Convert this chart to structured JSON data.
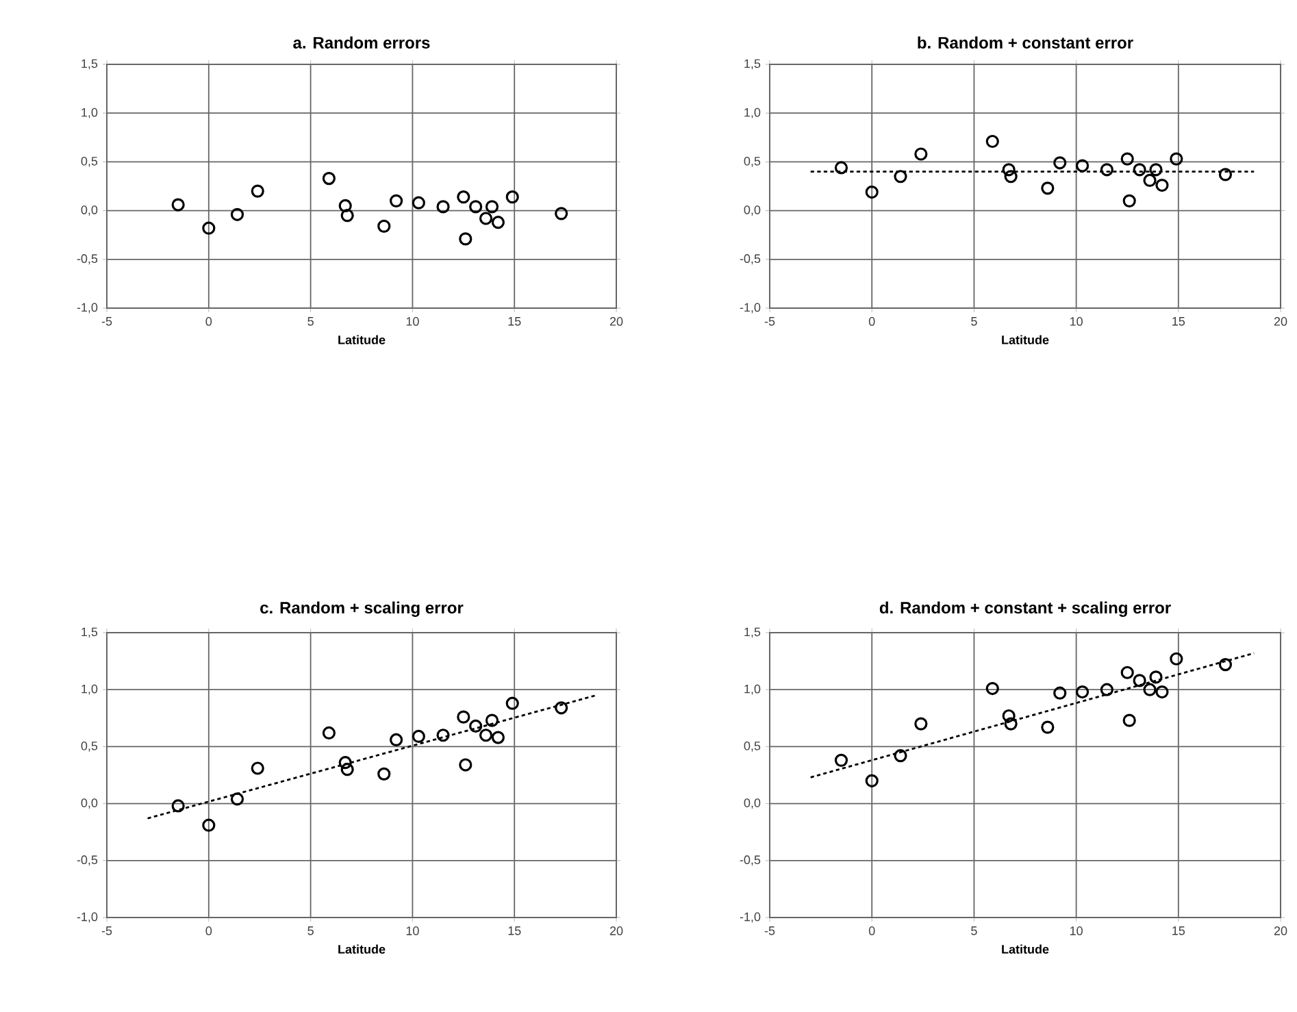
{
  "chart_data": [
    {
      "type": "scatter",
      "title": "a.  Random errors",
      "xlabel": "Latitude",
      "xlim": [
        -5,
        20
      ],
      "xticks": [
        -5,
        0,
        5,
        10,
        15,
        20
      ],
      "ylim": [
        -1,
        1.5
      ],
      "yticks": [
        {
          "value": -1,
          "label": "-1,0"
        },
        {
          "value": -0.5,
          "label": "-0,5"
        },
        {
          "value": 0,
          "label": "0,0"
        },
        {
          "value": 0.5,
          "label": "0,5"
        },
        {
          "value": 1,
          "label": "1,0"
        },
        {
          "value": 1.5,
          "label": "1,5"
        }
      ],
      "grid": true,
      "marker": "circle",
      "x": [
        -1.5,
        0,
        1.4,
        2.4,
        5.9,
        6.7,
        6.8,
        8.6,
        9.2,
        10.3,
        11.5,
        12.5,
        12.6,
        13.1,
        13.6,
        13.9,
        14.2,
        14.9,
        17.3
      ],
      "series": [
        {
          "color": "#000000",
          "values": [
            0.06,
            -0.18,
            -0.04,
            0.2,
            0.33,
            0.05,
            -0.05,
            -0.16,
            0.1,
            0.08,
            0.04,
            0.14,
            -0.29,
            0.04,
            -0.08,
            0.04,
            -0.12,
            0.14,
            -0.03
          ]
        }
      ]
    },
    {
      "type": "scatter",
      "title": "b. Random + constant error",
      "xlabel": "Latitude",
      "xlim": [
        -5,
        20
      ],
      "xticks": [
        -5,
        0,
        5,
        10,
        15,
        20
      ],
      "ylim": [
        -1,
        1.5
      ],
      "yticks": [
        {
          "value": -1,
          "label": "-1,0"
        },
        {
          "value": -0.5,
          "label": "-0,5"
        },
        {
          "value": 0,
          "label": "0,0"
        },
        {
          "value": 0.5,
          "label": "0,5"
        },
        {
          "value": 1,
          "label": "1,0"
        },
        {
          "value": 1.5,
          "label": "1,5"
        }
      ],
      "grid": true,
      "marker": "circle",
      "x": [
        -1.5,
        0,
        1.4,
        2.4,
        5.9,
        6.7,
        6.8,
        8.6,
        9.2,
        10.3,
        11.5,
        12.5,
        12.6,
        13.1,
        13.6,
        13.9,
        14.2,
        14.9,
        17.3
      ],
      "series": [
        {
          "color": "#000000",
          "values": [
            0.44,
            0.19,
            0.35,
            0.58,
            0.71,
            0.42,
            0.35,
            0.23,
            0.49,
            0.46,
            0.42,
            0.53,
            0.1,
            0.42,
            0.31,
            0.42,
            0.26,
            0.53,
            0.37
          ]
        },
        {
          "type": "line",
          "color": "#000000",
          "line_style": "dashed",
          "marker": "none",
          "x": [
            -3,
            18.7
          ],
          "values": [
            0.4,
            0.4
          ]
        }
      ]
    },
    {
      "type": "scatter",
      "title": "c. Random + scaling error",
      "xlabel": "Latitude",
      "xlim": [
        -5,
        20
      ],
      "xticks": [
        -5,
        0,
        5,
        10,
        15,
        20
      ],
      "ylim": [
        -1,
        1.5
      ],
      "yticks": [
        {
          "value": -1,
          "label": "-1,0"
        },
        {
          "value": -0.5,
          "label": "-0,5"
        },
        {
          "value": 0,
          "label": "0,0"
        },
        {
          "value": 0.5,
          "label": "0,5"
        },
        {
          "value": 1,
          "label": "1,0"
        },
        {
          "value": 1.5,
          "label": "1,5"
        }
      ],
      "grid": true,
      "marker": "circle",
      "x": [
        -1.5,
        0,
        1.4,
        2.4,
        5.9,
        6.7,
        6.8,
        8.6,
        9.2,
        10.3,
        11.5,
        12.5,
        12.6,
        13.1,
        13.6,
        13.9,
        14.2,
        14.9,
        17.3
      ],
      "series": [
        {
          "color": "#000000",
          "values": [
            -0.02,
            -0.19,
            0.04,
            0.31,
            0.62,
            0.36,
            0.3,
            0.26,
            0.56,
            0.59,
            0.6,
            0.76,
            0.34,
            0.68,
            0.6,
            0.73,
            0.58,
            0.88,
            0.84
          ]
        },
        {
          "type": "line",
          "color": "#000000",
          "line_style": "dashed",
          "marker": "none",
          "x": [
            -3,
            19
          ],
          "values": [
            -0.13,
            0.95
          ]
        }
      ]
    },
    {
      "type": "scatter",
      "title": "d. Random + constant + scaling error",
      "xlabel": "Latitude",
      "xlim": [
        -5,
        20
      ],
      "xticks": [
        -5,
        0,
        5,
        10,
        15,
        20
      ],
      "ylim": [
        -1,
        1.5
      ],
      "yticks": [
        {
          "value": -1,
          "label": "-1,0"
        },
        {
          "value": -0.5,
          "label": "-0,5"
        },
        {
          "value": 0,
          "label": "0,0"
        },
        {
          "value": 0.5,
          "label": "0,5"
        },
        {
          "value": 1,
          "label": "1,0"
        },
        {
          "value": 1.5,
          "label": "1,5"
        }
      ],
      "grid": true,
      "marker": "circle",
      "x": [
        -1.5,
        0,
        1.4,
        2.4,
        5.9,
        6.7,
        6.8,
        8.6,
        9.2,
        10.3,
        11.5,
        12.5,
        12.6,
        13.1,
        13.6,
        13.9,
        14.2,
        14.9,
        17.3
      ],
      "series": [
        {
          "color": "#000000",
          "values": [
            0.38,
            0.2,
            0.42,
            0.7,
            1.01,
            0.77,
            0.7,
            0.67,
            0.97,
            0.98,
            1.0,
            1.15,
            0.73,
            1.08,
            1.0,
            1.11,
            0.98,
            1.27,
            1.22
          ]
        },
        {
          "type": "line",
          "color": "#000000",
          "line_style": "dashed",
          "marker": "none",
          "x": [
            -3,
            18.7
          ],
          "values": [
            0.23,
            1.32
          ]
        }
      ]
    }
  ]
}
